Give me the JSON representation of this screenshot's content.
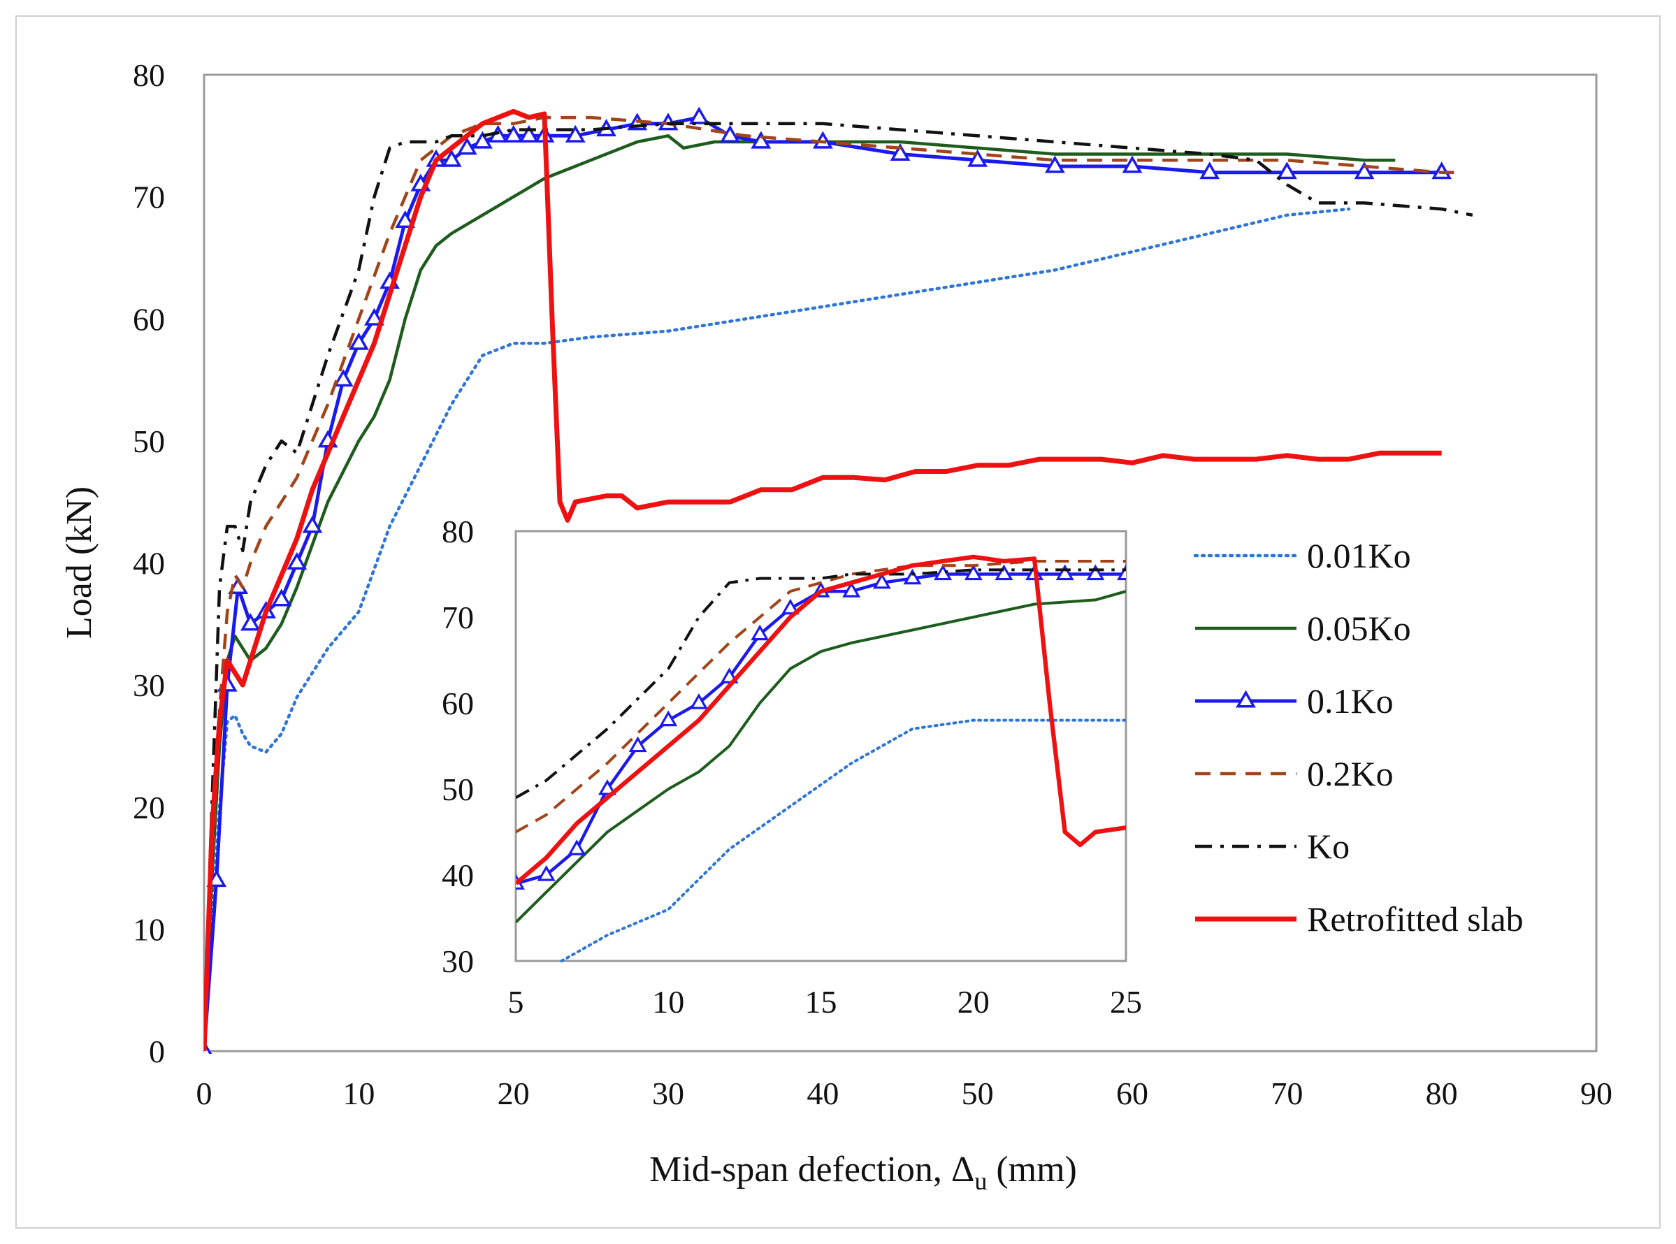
{
  "chart_data": [
    {
      "type": "line",
      "panel": "main",
      "xlabel_main": "Mid-span defection, Δ",
      "xlabel_sub": "u",
      "xlabel_unit": " (mm)",
      "ylabel": "Load (kN)",
      "xlim": [
        0,
        90
      ],
      "ylim": [
        0,
        80
      ],
      "xticks": [
        0,
        10,
        20,
        30,
        40,
        50,
        60,
        70,
        80,
        90
      ],
      "yticks": [
        0,
        10,
        20,
        30,
        40,
        50,
        60,
        70,
        80
      ],
      "grid": false,
      "series": [
        {
          "name": "0.01Ko",
          "color": "#2e75d6",
          "style": "dotted",
          "x": [
            0,
            0.5,
            1,
            1.5,
            2,
            2.5,
            3,
            4,
            5,
            6,
            8,
            10,
            12,
            14,
            16,
            18,
            20,
            22,
            25,
            30,
            35,
            40,
            45,
            50,
            55,
            60,
            65,
            70,
            74
          ],
          "y": [
            0,
            10,
            20,
            27,
            27.5,
            26,
            25,
            24.5,
            26,
            29,
            33,
            36,
            43,
            48,
            53,
            57,
            58,
            58,
            58.5,
            59,
            60,
            61,
            62,
            63,
            64,
            65.5,
            67,
            68.5,
            69
          ]
        },
        {
          "name": "0.05Ko",
          "color": "#1e5c1e",
          "style": "solid",
          "x": [
            0,
            0.5,
            1,
            1.5,
            2,
            2.5,
            3,
            4,
            5,
            6,
            8,
            10,
            11,
            12,
            13,
            14,
            15,
            16,
            18,
            20,
            22,
            25,
            28,
            30,
            31,
            33,
            35,
            40,
            45,
            50,
            55,
            60,
            65,
            70,
            75,
            77
          ],
          "y": [
            0,
            14,
            25,
            32,
            34,
            33,
            32,
            33,
            35,
            38,
            45,
            50,
            52,
            55,
            60,
            64,
            66,
            67,
            68.5,
            70,
            71.5,
            73,
            74.5,
            75,
            74,
            74.5,
            74.5,
            74.5,
            74.5,
            74,
            73.5,
            73.5,
            73.5,
            73.5,
            73,
            73
          ]
        },
        {
          "name": "0.1Ko",
          "color": "#1a1aee",
          "style": "solid-triangle",
          "x": [
            0,
            0.8,
            1.5,
            2.2,
            3,
            4,
            5,
            6,
            7,
            8,
            9,
            10,
            11,
            12,
            13,
            14,
            15,
            16,
            17,
            18,
            19,
            20,
            21,
            22,
            24,
            26,
            28,
            30,
            32,
            34,
            36,
            40,
            45,
            50,
            55,
            60,
            65,
            70,
            75,
            80
          ],
          "y": [
            0,
            14,
            30,
            38,
            35,
            36,
            37,
            40,
            43,
            50,
            55,
            58,
            60,
            63,
            68,
            71,
            73,
            73,
            74,
            74.5,
            75,
            75,
            75,
            75,
            75,
            75.5,
            76,
            76,
            76.5,
            75,
            74.5,
            74.5,
            73.5,
            73,
            72.5,
            72.5,
            72,
            72,
            72,
            72
          ]
        },
        {
          "name": "0.2Ko",
          "color": "#a0451a",
          "style": "dashed",
          "x": [
            0,
            0.5,
            1,
            1.5,
            2,
            2.5,
            3,
            4,
            5,
            6,
            8,
            10,
            12,
            13,
            14,
            15,
            16,
            18,
            20,
            22,
            25,
            30,
            35,
            40,
            45,
            50,
            55,
            60,
            65,
            70,
            75,
            80,
            81
          ],
          "y": [
            0,
            15,
            28,
            36,
            39,
            38,
            40,
            43,
            45,
            47,
            53,
            60,
            67,
            70,
            73,
            74,
            75,
            76,
            76,
            76.5,
            76.5,
            76,
            75,
            74.5,
            74,
            73.5,
            73,
            73,
            73,
            73,
            72.5,
            72,
            72
          ]
        },
        {
          "name": "Ko",
          "color": "#111111",
          "style": "dashdot",
          "x": [
            0,
            0.5,
            1,
            1.5,
            2,
            2.5,
            3,
            4,
            5,
            6,
            8,
            10,
            11,
            12,
            13,
            14,
            15,
            16,
            18,
            20,
            25,
            30,
            35,
            40,
            45,
            50,
            55,
            60,
            65,
            68,
            70,
            72,
            75,
            80,
            82
          ],
          "y": [
            0,
            20,
            38,
            43,
            43,
            41,
            45,
            48,
            50,
            49,
            57,
            64,
            70,
            74,
            74.5,
            74.5,
            74.5,
            75,
            75,
            75.5,
            75.5,
            76,
            76,
            76,
            75.5,
            75,
            74.5,
            74,
            73.5,
            73,
            71,
            69.5,
            69.5,
            69,
            68.5
          ]
        },
        {
          "name": "Retrofitted slab",
          "color": "#ee1111",
          "style": "solid-thick",
          "x": [
            0,
            0.5,
            1,
            1.5,
            2,
            2.5,
            3,
            4,
            5,
            6,
            7,
            8,
            9,
            10,
            11,
            12,
            13,
            14,
            15,
            16,
            17,
            18,
            19,
            20,
            21,
            22,
            22.5,
            23,
            23.5,
            24,
            26,
            27,
            28,
            30,
            32,
            34,
            36,
            38,
            40,
            42,
            44,
            46,
            48,
            50,
            52,
            54,
            56,
            58,
            60,
            62,
            64,
            66,
            68,
            70,
            72,
            74,
            76,
            78,
            80
          ],
          "y": [
            0,
            18,
            27,
            32,
            31,
            30,
            32,
            36,
            39,
            42,
            46,
            49,
            52,
            55,
            58,
            62,
            66,
            70,
            73,
            74,
            75,
            76,
            76.5,
            77,
            76.5,
            76.8,
            60,
            45,
            43.5,
            45,
            45.5,
            45.5,
            44.5,
            45,
            45,
            45,
            46,
            46,
            47,
            47,
            46.8,
            47.5,
            47.5,
            48,
            48,
            48.5,
            48.5,
            48.5,
            48.2,
            48.8,
            48.5,
            48.5,
            48.5,
            48.8,
            48.5,
            48.5,
            49,
            49,
            49
          ]
        }
      ],
      "legend": {
        "placement": "right, lower-middle",
        "entries": [
          "0.01Ko",
          "0.05Ko",
          "0.1Ko",
          "0.2Ko",
          "Ko",
          "Retrofitted slab"
        ]
      }
    },
    {
      "type": "line",
      "panel": "inset",
      "xlim": [
        5,
        25
      ],
      "ylim": [
        30,
        80
      ],
      "xticks": [
        5,
        10,
        15,
        20,
        25
      ],
      "yticks": [
        30,
        40,
        50,
        60,
        70,
        80
      ],
      "grid": false,
      "series": [
        {
          "name": "0.01Ko",
          "x": [
            6.5,
            8,
            10,
            12,
            14,
            16,
            18,
            20,
            22,
            25
          ],
          "y": [
            30,
            33,
            36,
            43,
            48,
            53,
            57,
            58,
            58,
            58
          ]
        },
        {
          "name": "0.05Ko",
          "x": [
            5,
            6,
            8,
            10,
            11,
            12,
            13,
            14,
            15,
            16,
            18,
            20,
            22,
            24,
            25
          ],
          "y": [
            34.5,
            38,
            45,
            50,
            52,
            55,
            60,
            64,
            66,
            67,
            68.5,
            70,
            71.5,
            72,
            73
          ]
        },
        {
          "name": "0.1Ko",
          "x": [
            5,
            6,
            7,
            8,
            9,
            10,
            11,
            12,
            13,
            14,
            15,
            16,
            17,
            18,
            19,
            20,
            21,
            22,
            23,
            24,
            25
          ],
          "y": [
            39,
            40,
            43,
            50,
            55,
            58,
            60,
            63,
            68,
            71,
            73,
            73,
            74,
            74.5,
            75,
            75,
            75,
            75,
            75,
            75,
            75
          ]
        },
        {
          "name": "0.2Ko",
          "x": [
            5,
            6,
            8,
            10,
            12,
            13,
            14,
            15,
            16,
            18,
            20,
            22,
            25
          ],
          "y": [
            45,
            47,
            53,
            60,
            67,
            70,
            73,
            74,
            75,
            76,
            76,
            76.5,
            76.5
          ]
        },
        {
          "name": "Ko",
          "x": [
            5,
            6,
            8,
            10,
            11,
            12,
            13,
            14,
            15,
            16,
            18,
            20,
            25
          ],
          "y": [
            49,
            51,
            57,
            64,
            70,
            74,
            74.5,
            74.5,
            74.5,
            75,
            75,
            75.5,
            75.5
          ]
        },
        {
          "name": "Retrofitted slab",
          "x": [
            5,
            6,
            7,
            8,
            9,
            10,
            11,
            12,
            13,
            14,
            15,
            16,
            17,
            18,
            19,
            20,
            21,
            22,
            22.5,
            23,
            23.5,
            24,
            25
          ],
          "y": [
            39,
            42,
            46,
            49,
            52,
            55,
            58,
            62,
            66,
            70,
            73,
            74,
            75,
            76,
            76.5,
            77,
            76.5,
            76.8,
            60,
            45,
            43.5,
            45,
            45.5
          ]
        }
      ]
    }
  ]
}
